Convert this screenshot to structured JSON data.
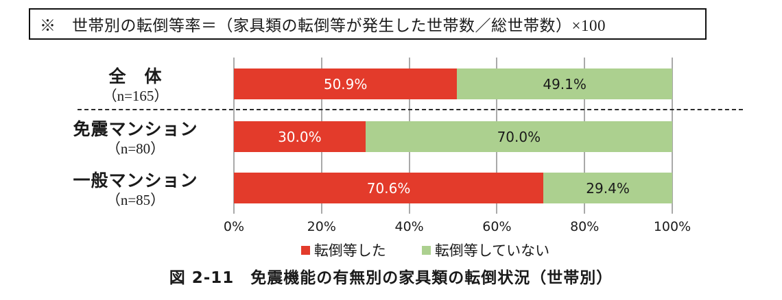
{
  "note": {
    "text": "※　世帯別の転倒等率＝（家具類の転倒等が発生した世帯数／総世帯数）×100"
  },
  "caption": "図 2-11　免震機能の有無別の家具類の転倒状況（世帯別）",
  "colors": {
    "fell": "#e33b2b",
    "not_fell": "#acd08f",
    "gridline": "#a9a9a9",
    "text": "#1a1a1a"
  },
  "chart_data": {
    "type": "bar",
    "orientation": "horizontal_stacked",
    "title": "",
    "categories": [
      "全　体",
      "免震マンション",
      "一般マンション"
    ],
    "category_counts": [
      "（n=165）",
      "（n=80）",
      "（n=85）"
    ],
    "series": [
      {
        "name": "転倒等した",
        "color": "#e33b2b",
        "label_color": "#ffffff",
        "values": [
          50.9,
          30.0,
          70.6
        ]
      },
      {
        "name": "転倒等していない",
        "color": "#acd08f",
        "label_color": "#1a1a1a",
        "values": [
          49.1,
          70.0,
          29.4
        ]
      }
    ],
    "x_ticks": [
      "0%",
      "20%",
      "40%",
      "60%",
      "80%",
      "100%"
    ],
    "xlim": [
      0,
      100
    ],
    "grid": true,
    "legend_position": "bottom",
    "separator_after_category_index": 0
  }
}
